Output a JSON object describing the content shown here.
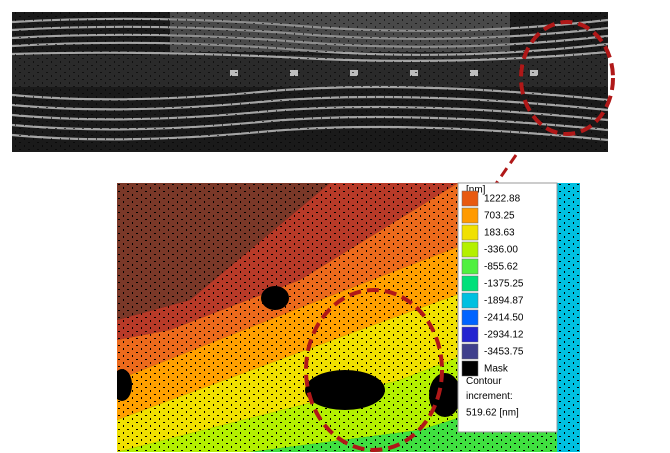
{
  "legend": {
    "unit": "[nm]",
    "entries": [
      {
        "label": "1222.88",
        "color": "#e85a10"
      },
      {
        "label": "703.25",
        "color": "#ff9a00"
      },
      {
        "label": "183.63",
        "color": "#f0e000"
      },
      {
        "label": "-336.00",
        "color": "#b4f000"
      },
      {
        "label": "-855.62",
        "color": "#50f040"
      },
      {
        "label": "-1375.25",
        "color": "#00e07a"
      },
      {
        "label": "-1894.87",
        "color": "#00c0e0"
      },
      {
        "label": "-2414.50",
        "color": "#0064ff"
      },
      {
        "label": "-2934.12",
        "color": "#2424d0"
      },
      {
        "label": "-3453.75",
        "color": "#40408c"
      },
      {
        "label": "Mask",
        "color": "#000000"
      }
    ],
    "contour_label": "Contour increment:",
    "increment": "519.62 [nm]"
  }
}
